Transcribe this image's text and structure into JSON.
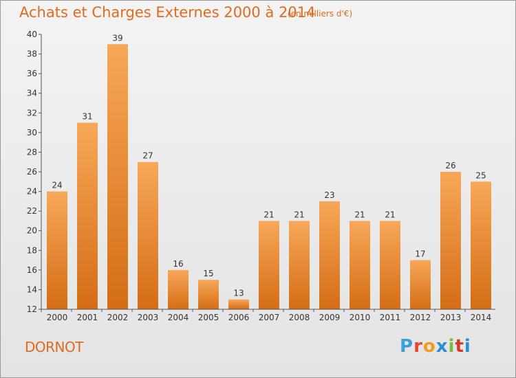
{
  "header": {
    "title": "Achats et Charges Externes 2000 à 2014",
    "subtitle": "(en milliers d'€)"
  },
  "footer": {
    "place": "DORNOT",
    "logo": [
      "P",
      "r",
      "o",
      "x",
      "i",
      "t",
      "i"
    ]
  },
  "colors": {
    "accent": "#e06b1e",
    "bar_light": "#f7a858",
    "bar_dark": "#d46d16",
    "axis": "#555555"
  },
  "chart_data": {
    "type": "bar",
    "title": "Achats et Charges Externes 2000 à 2014",
    "subtitle": "(en milliers d'€)",
    "categories": [
      "2000",
      "2001",
      "2002",
      "2003",
      "2004",
      "2005",
      "2006",
      "2007",
      "2008",
      "2009",
      "2010",
      "2011",
      "2012",
      "2013",
      "2014"
    ],
    "values": [
      24,
      31,
      39,
      27,
      16,
      15,
      13,
      21,
      21,
      23,
      21,
      21,
      17,
      26,
      25
    ],
    "ylim": [
      12,
      40
    ],
    "yticks": [
      12,
      14,
      16,
      18,
      20,
      22,
      24,
      26,
      28,
      30,
      32,
      34,
      36,
      38,
      40
    ],
    "grid": false,
    "legend": "none"
  }
}
